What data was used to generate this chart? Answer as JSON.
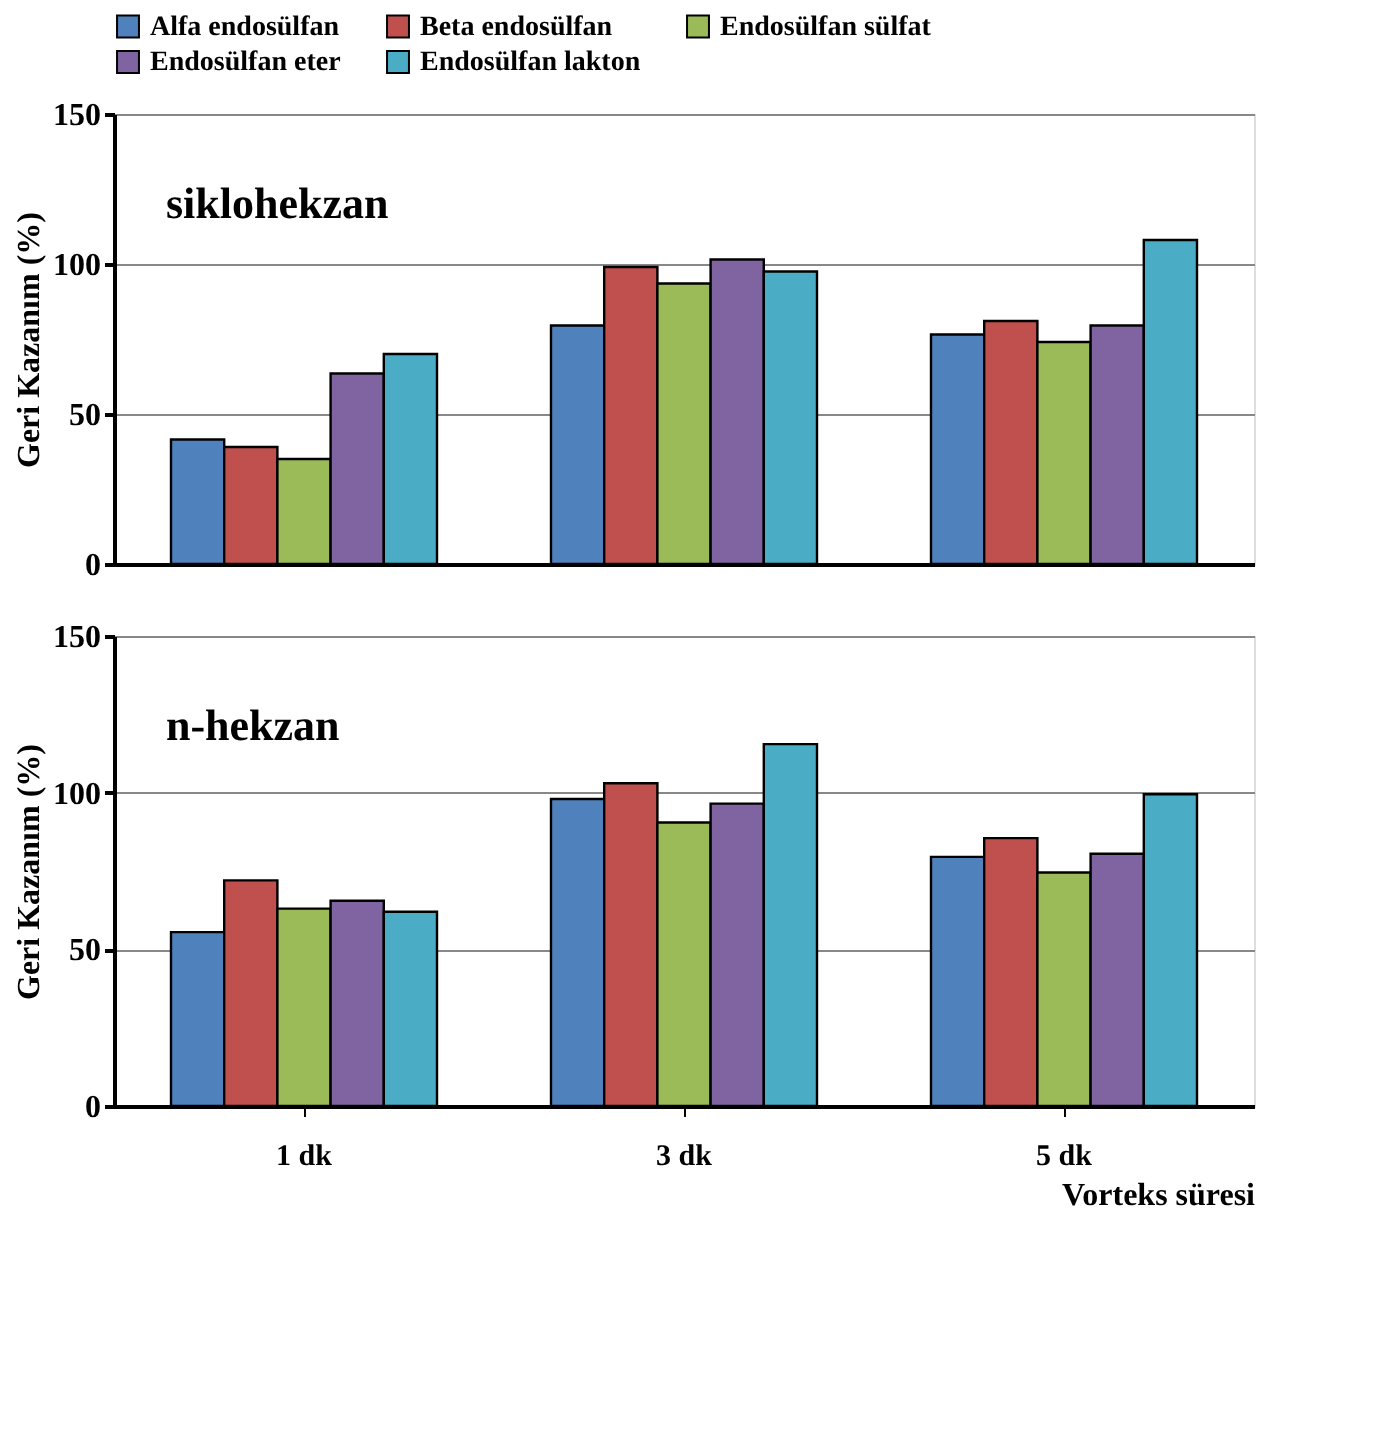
{
  "chart_data": [
    {
      "type": "bar",
      "annotations": [
        "siklohekzan"
      ],
      "ylabel": "Geri Kazanım (%)",
      "categories": [
        null,
        null,
        null
      ],
      "series": [
        {
          "name": "Alfa endosülfan",
          "color": "#4f81bd",
          "values": [
            41.5,
            79.5,
            76.5
          ]
        },
        {
          "name": "Beta endosülfan",
          "color": "#c0504d",
          "values": [
            39,
            99,
            81
          ]
        },
        {
          "name": "Endosülfan sülfat",
          "color": "#9bbb59",
          "values": [
            35,
            93.5,
            74
          ]
        },
        {
          "name": "Endosülfan eter",
          "color": "#8064a2",
          "values": [
            63.5,
            101.5,
            79.5
          ]
        },
        {
          "name": "Endosülfan lakton",
          "color": "#4bacc6",
          "values": [
            70,
            97.5,
            108
          ]
        }
      ],
      "ylim": [
        0,
        150
      ],
      "yticks": [
        0,
        50,
        100,
        150
      ],
      "grid": "y",
      "legend": "top",
      "tick_labels": "y"
    },
    {
      "type": "bar",
      "annotations": [
        "n-hekzan"
      ],
      "ylabel": "Geri Kazanım (%)",
      "xlabel": "Vorteks süresi",
      "categories": [
        "1 dk",
        "3 dk",
        "5 dk"
      ],
      "series": [
        {
          "color": "#4f81bd",
          "values": [
            55.5,
            98,
            79.5
          ]
        },
        {
          "color": "#c0504d",
          "values": [
            72,
            103,
            85.5
          ]
        },
        {
          "color": "#9bbb59",
          "values": [
            63,
            90.5,
            74.5
          ]
        },
        {
          "color": "#8064a2",
          "values": [
            65.5,
            96.5,
            80.5
          ]
        },
        {
          "color": "#4bacc6",
          "values": [
            62,
            115.5,
            99.5
          ]
        }
      ],
      "ylim": [
        0,
        150
      ],
      "yticks": [
        0,
        50,
        100,
        150
      ],
      "grid": "y"
    }
  ]
}
